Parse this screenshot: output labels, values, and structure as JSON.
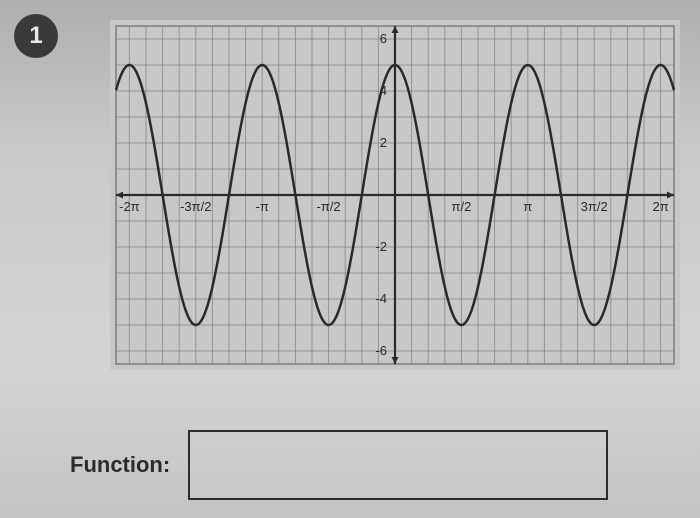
{
  "badge": {
    "label": "1"
  },
  "function_label": "Function:",
  "chart": {
    "type": "line",
    "background_color": "#c7c8ca",
    "grid_color": "#7d7e80",
    "axis_color": "#2a2a2c",
    "curve_color": "#2a2a2c",
    "curve_width": 2.5,
    "grid_width": 1,
    "axis_width": 2.2,
    "label_color": "#2a2a2c",
    "label_fontsize": 13,
    "xlim": [
      -6.6,
      6.6
    ],
    "ylim": [
      -6.5,
      6.5
    ],
    "x_ticks": [
      {
        "v": -6.2832,
        "label": "-2π"
      },
      {
        "v": -4.7124,
        "label": "-3π/2"
      },
      {
        "v": -3.1416,
        "label": "-π"
      },
      {
        "v": -1.5708,
        "label": "-π/2"
      },
      {
        "v": 1.5708,
        "label": "π/2"
      },
      {
        "v": 3.1416,
        "label": "π"
      },
      {
        "v": 4.7124,
        "label": "3π/2"
      },
      {
        "v": 6.2832,
        "label": "2π"
      }
    ],
    "y_ticks": [
      {
        "v": 6,
        "label": "6"
      },
      {
        "v": 4,
        "label": "4"
      },
      {
        "v": 2,
        "label": "2"
      },
      {
        "v": -2,
        "label": "-2"
      },
      {
        "v": -4,
        "label": "-4"
      },
      {
        "v": -6,
        "label": "-6"
      }
    ],
    "x_grid_step": 0.3927,
    "y_grid_step": 1,
    "series": {
      "amplitude": 5,
      "angular_freq": 2,
      "phase": 0,
      "vertical_shift": 0,
      "formula_hint": "y = 5 cos(2x)"
    }
  }
}
